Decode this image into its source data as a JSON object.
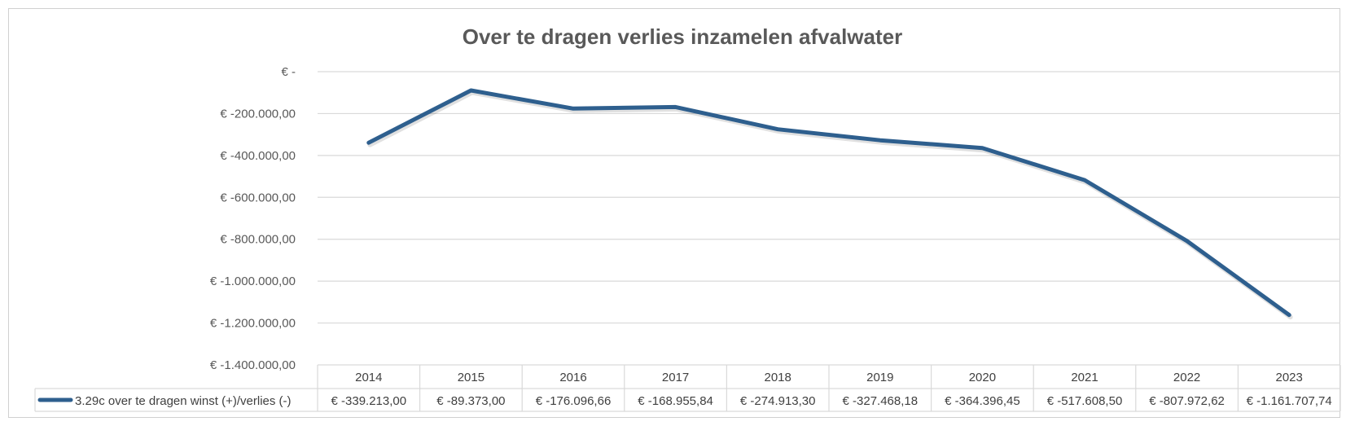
{
  "chart_data": {
    "type": "line",
    "title": "Over te dragen verlies inzamelen afvalwater",
    "categories": [
      "2014",
      "2015",
      "2016",
      "2017",
      "2018",
      "2019",
      "2020",
      "2021",
      "2022",
      "2023"
    ],
    "series": [
      {
        "name": "3.29c over te dragen winst (+)/verlies (-)",
        "color": "#2e5f8e",
        "values": [
          -339213.0,
          -89373.0,
          -176096.66,
          -168955.84,
          -274913.3,
          -327468.18,
          -364396.45,
          -517608.5,
          -807972.62,
          -1161707.74
        ],
        "value_labels": [
          "€ -339.213,00",
          "€ -89.373,00",
          "€ -176.096,66",
          "€ -168.955,84",
          "€ -274.913,30",
          "€ -327.468,18",
          "€ -364.396,45",
          "€ -517.608,50",
          "€ -807.972,62",
          "€ -1.161.707,74"
        ]
      }
    ],
    "ylim": [
      -1400000,
      0
    ],
    "yticks": [
      0,
      -200000,
      -400000,
      -600000,
      -800000,
      -1000000,
      -1200000,
      -1400000
    ],
    "ytick_labels": [
      "€ -",
      "€ -200.000,00",
      "€ -400.000,00",
      "€ -600.000,00",
      "€ -800.000,00",
      "€ -1.000.000,00",
      "€ -1.200.000,00",
      "€ -1.400.000,00"
    ],
    "grid": true,
    "legend": "data-table"
  }
}
